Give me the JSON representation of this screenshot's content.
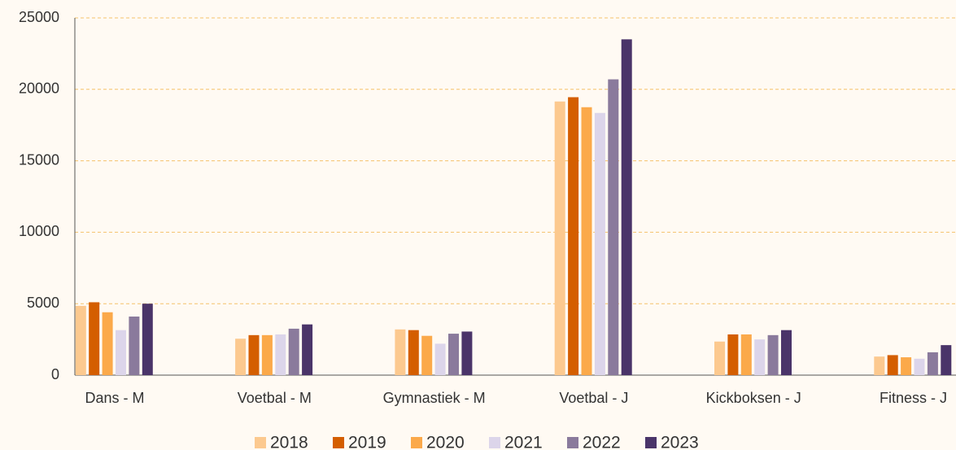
{
  "chart_data": {
    "type": "bar",
    "categories": [
      "Dans - M",
      "Voetbal - M",
      "Gymnastiek - M",
      "Voetbal - J",
      "Kickboksen - J",
      "Fitness - J"
    ],
    "series": [
      {
        "name": "2018",
        "color": "#fcc98f",
        "values": [
          4850,
          2550,
          3200,
          19150,
          2350,
          1300
        ]
      },
      {
        "name": "2019",
        "color": "#d45e00",
        "values": [
          5100,
          2800,
          3150,
          19450,
          2850,
          1400
        ]
      },
      {
        "name": "2020",
        "color": "#fba94a",
        "values": [
          4400,
          2800,
          2750,
          18750,
          2850,
          1250
        ]
      },
      {
        "name": "2021",
        "color": "#dcd5ea",
        "values": [
          3150,
          2850,
          2200,
          18350,
          2500,
          1150
        ]
      },
      {
        "name": "2022",
        "color": "#8a7a9c",
        "values": [
          4100,
          3250,
          2900,
          20700,
          2800,
          1600
        ]
      },
      {
        "name": "2023",
        "color": "#4a3469",
        "values": [
          5000,
          3550,
          3050,
          23500,
          3150,
          2100
        ]
      }
    ],
    "ylim": [
      0,
      25000
    ],
    "yticks": [
      0,
      5000,
      10000,
      15000,
      20000,
      25000
    ],
    "grid": true,
    "legend": "bottom"
  }
}
